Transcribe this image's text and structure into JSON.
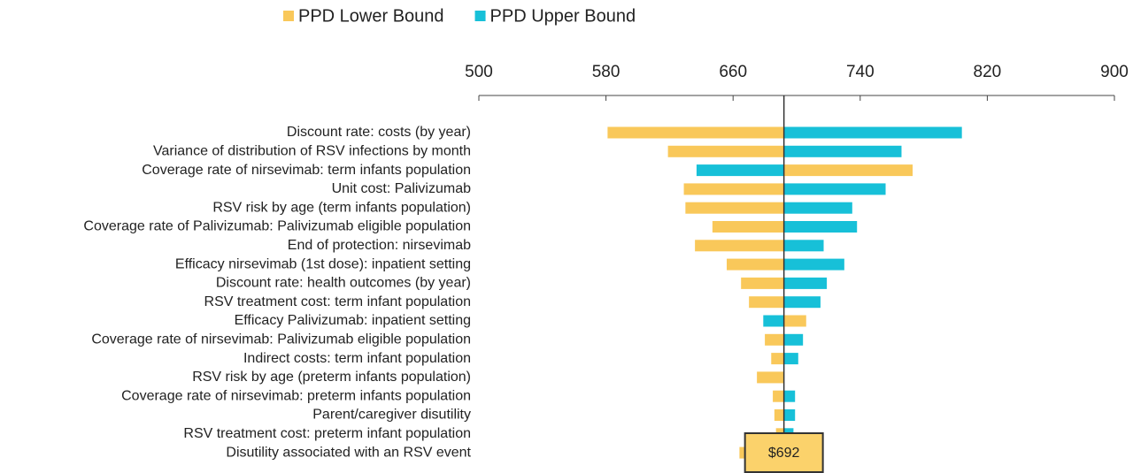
{
  "chart_data": {
    "type": "tornado",
    "categories": [
      "Discount rate: costs (by year)",
      "Variance of distribution of RSV infections by month",
      "Coverage rate of nirsevimab: term infants population",
      "Unit cost: Palivizumab",
      "RSV risk by age (term infants population)",
      "Coverage rate of Palivizumab: Palivizumab eligible population",
      "End of protection: nirsevimab",
      "Efficacy nirsevimab (1st dose): inpatient setting",
      "Discount rate: health outcomes (by year)",
      "RSV treatment cost: term infant population",
      "Efficacy Palivizumab: inpatient setting",
      "Coverage rate of nirsevimab: Palivizumab eligible population",
      "Indirect costs: term infant population",
      "RSV risk by age (preterm infants population)",
      "Coverage rate of nirsevimab: preterm infants population",
      "Parent/caregiver disutility",
      "RSV treatment cost: preterm infant population",
      "Disutility associated with an RSV event"
    ],
    "series": [
      {
        "name": "PPD Lower Bound",
        "color": "#f9c85a",
        "values": [
          581,
          619,
          773,
          629,
          630,
          647,
          636,
          656,
          665,
          670,
          706,
          680,
          684,
          675,
          685,
          686,
          687,
          664
        ]
      },
      {
        "name": "PPD Upper Bound",
        "color": "#17c0d8",
        "values": [
          804,
          766,
          637,
          756,
          735,
          738,
          717,
          730,
          719,
          715,
          679,
          704,
          701,
          692,
          699,
          699,
          698,
          675
        ]
      }
    ],
    "base": 692,
    "base_label": "$692",
    "xlim": [
      500,
      900
    ],
    "xticks": [
      500,
      580,
      660,
      740,
      820,
      900
    ],
    "legend": "top"
  }
}
